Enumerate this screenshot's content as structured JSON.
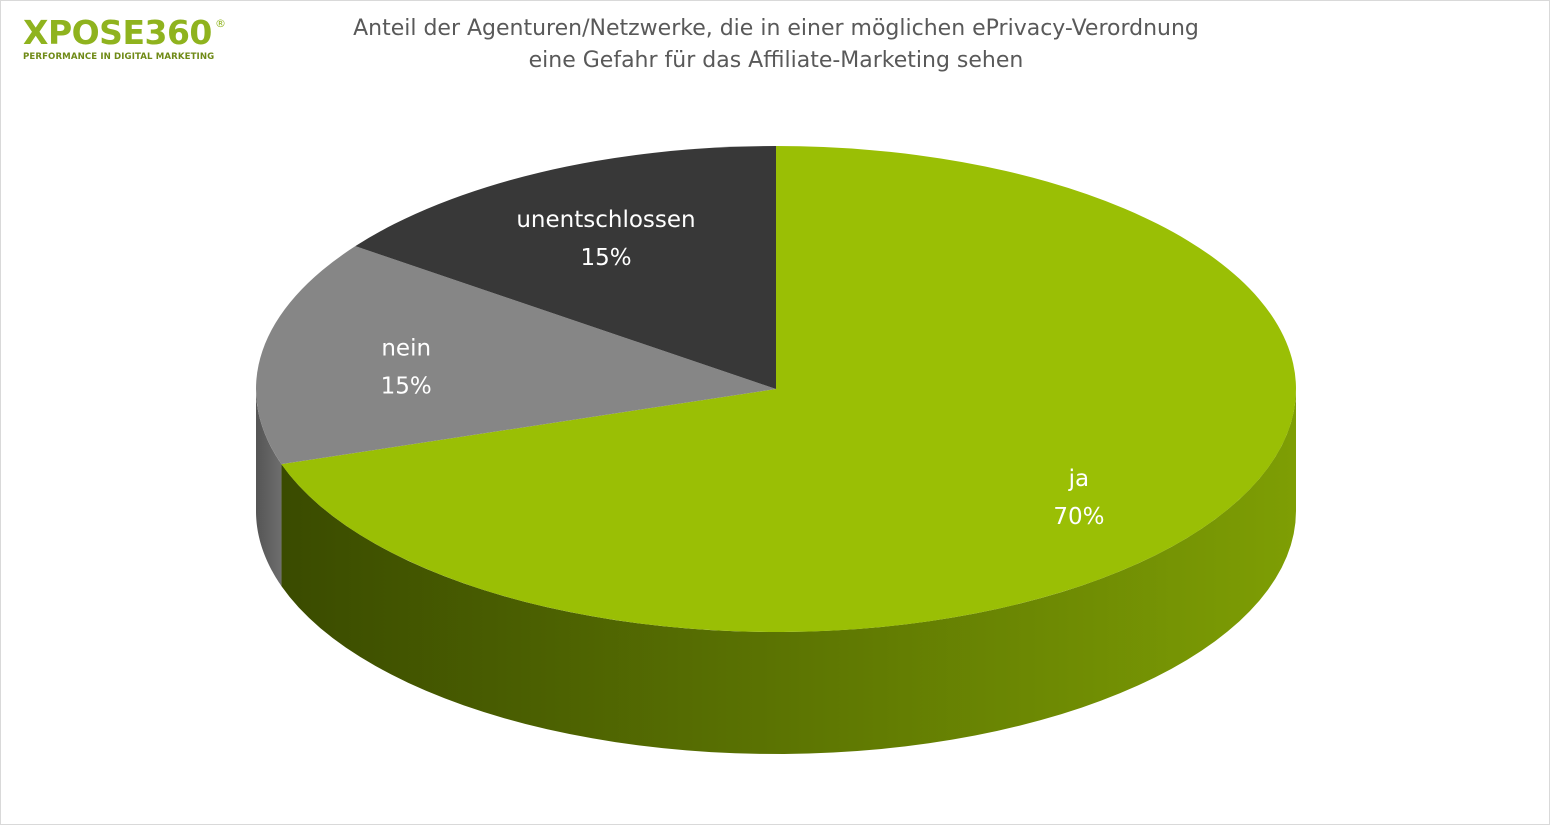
{
  "logo": {
    "name": "XPOSE360",
    "registered": "®",
    "tagline": "PERFORMANCE IN DIGITAL MARKETING"
  },
  "chart_data": {
    "type": "pie",
    "title": "Anteil der Agenturen/Netzwerke, die in einer möglichen ePrivacy-Verordnung eine Gefahr für das Affiliate-Marketing sehen",
    "title_lines": [
      "Anteil der Agenturen/Netzwerke, die in einer möglichen ePrivacy-Verordnung",
      "eine Gefahr für das Affiliate-Marketing sehen"
    ],
    "style": "3d",
    "legend": "none",
    "slices": [
      {
        "label": "ja",
        "value": 70,
        "value_label": "70%",
        "color": "#9abf05",
        "side_color_light": "#7e9e04",
        "side_color_dark": "#3a4b00",
        "label_color": "#ffffff"
      },
      {
        "label": "nein",
        "value": 15,
        "value_label": "15%",
        "color": "#868686",
        "side_color_light": "#6e6e6e",
        "side_color_dark": "#555555",
        "label_color": "#ffffff"
      },
      {
        "label": "unentschlossen",
        "value": 15,
        "value_label": "15%",
        "color": "#383838",
        "side_color_light": "#2c2c2c",
        "side_color_dark": "#1e1e1e",
        "label_color": "#ffffff"
      }
    ]
  }
}
